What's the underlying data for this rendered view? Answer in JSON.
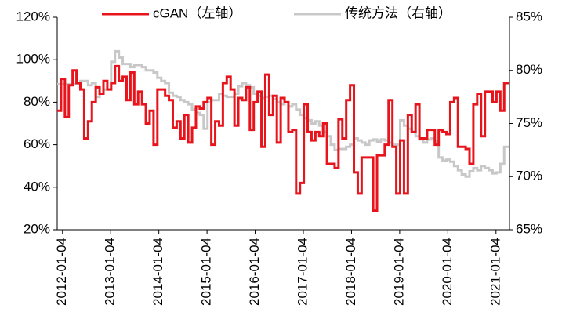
{
  "chart_data": {
    "type": "line",
    "step": true,
    "x": [
      2011.9,
      2011.98,
      2012.06,
      2012.14,
      2012.22,
      2012.3,
      2012.38,
      2012.46,
      2012.54,
      2012.62,
      2012.7,
      2012.78,
      2012.86,
      2012.94,
      2013.02,
      2013.1,
      2013.18,
      2013.26,
      2013.34,
      2013.42,
      2013.5,
      2013.58,
      2013.66,
      2013.74,
      2013.82,
      2013.9,
      2013.98,
      2014.06,
      2014.14,
      2014.22,
      2014.3,
      2014.38,
      2014.46,
      2014.54,
      2014.62,
      2014.7,
      2014.78,
      2014.86,
      2014.94,
      2015.02,
      2015.1,
      2015.18,
      2015.26,
      2015.34,
      2015.42,
      2015.5,
      2015.58,
      2015.66,
      2015.74,
      2015.82,
      2015.9,
      2015.98,
      2016.06,
      2016.14,
      2016.22,
      2016.3,
      2016.38,
      2016.46,
      2016.54,
      2016.62,
      2016.7,
      2016.78,
      2016.86,
      2016.94,
      2017.02,
      2017.1,
      2017.18,
      2017.26,
      2017.34,
      2017.42,
      2017.5,
      2017.58,
      2017.66,
      2017.74,
      2017.82,
      2017.9,
      2017.98,
      2018.06,
      2018.14,
      2018.22,
      2018.3,
      2018.38,
      2018.46,
      2018.54,
      2018.62,
      2018.7,
      2018.78,
      2018.86,
      2018.94,
      2019.02,
      2019.1,
      2019.18,
      2019.26,
      2019.34,
      2019.42,
      2019.5,
      2019.58,
      2019.66,
      2019.74,
      2019.82,
      2019.9,
      2019.98,
      2020.06,
      2020.14,
      2020.22,
      2020.3,
      2020.38,
      2020.46,
      2020.54,
      2020.62,
      2020.7,
      2020.78,
      2020.86,
      2020.94,
      2021.02,
      2021.1,
      2021.18
    ],
    "series": [
      {
        "name": "cGAN（左轴）",
        "color": "#e8141b",
        "values": [
          76,
          91,
          73,
          88,
          95,
          89,
          86,
          63,
          71,
          80,
          87,
          84,
          90,
          86,
          89,
          97,
          90,
          92,
          81,
          94,
          79,
          85,
          79,
          70,
          76,
          60,
          86,
          86,
          83,
          81,
          68,
          71,
          63,
          74,
          61,
          68,
          78,
          77,
          80,
          82,
          60,
          71,
          69,
          89,
          92,
          86,
          69,
          82,
          81,
          87,
          67,
          80,
          85,
          59,
          93,
          74,
          83,
          61,
          82,
          80,
          66,
          67,
          37,
          42,
          79,
          66,
          62,
          66,
          64,
          70,
          51,
          51,
          49,
          72,
          63,
          81,
          88,
          47,
          37,
          54,
          54,
          54,
          29,
          55,
          55,
          60,
          81,
          59,
          37,
          62,
          37,
          74,
          66,
          79,
          63,
          63,
          67,
          67,
          60,
          67,
          66,
          65,
          80,
          82,
          59,
          59,
          58,
          51,
          79,
          84,
          64,
          85,
          85,
          80,
          85,
          76,
          89
        ]
      },
      {
        "name": "传统方法（右轴）",
        "color": "#c8c8c8",
        "axis": "y2",
        "values": [
          78.7,
          78.7,
          78.7,
          78.7,
          78.7,
          78.7,
          79,
          79,
          78.6,
          78.8,
          77.5,
          77.8,
          78.2,
          78.2,
          80.8,
          81.8,
          81.2,
          80.6,
          80.6,
          80.3,
          80.5,
          80.5,
          80.3,
          80,
          80,
          79.8,
          79.3,
          79,
          78.8,
          77.9,
          77.6,
          77.5,
          77.2,
          77,
          76.8,
          76.3,
          76,
          75.8,
          74.5,
          77,
          77.2,
          77.2,
          77.8,
          77.6,
          77.5,
          77.5,
          77.8,
          78.5,
          78.8,
          78.6,
          78.4,
          77.8,
          77.6,
          77.4,
          77.5,
          77.6,
          77.3,
          77,
          76.8,
          77,
          76.6,
          76.8,
          76.3,
          75.8,
          75.5,
          75.3,
          75,
          75.2,
          74.8,
          74.2,
          73.8,
          73,
          72.5,
          72.6,
          72.6,
          72.8,
          73,
          73.6,
          73.4,
          73.2,
          73,
          73.4,
          73.5,
          73.3,
          73.5,
          73.4,
          73.2,
          73,
          73,
          75.3,
          74.8,
          74.5,
          74.2,
          73.8,
          73.5,
          73.2,
          73.5,
          73.6,
          73.3,
          71.8,
          71.5,
          71.6,
          71.4,
          71,
          70.6,
          70.2,
          70,
          70.5,
          70.8,
          70.6,
          71,
          70.8,
          70.6,
          70.3,
          70.4,
          71.2,
          72.8
        ]
      }
    ],
    "xlim": [
      2011.9,
      2021.29
    ],
    "xticks": [
      {
        "value": 2012.01,
        "label": "2012-01-04"
      },
      {
        "value": 2013.01,
        "label": "2013-01-04"
      },
      {
        "value": 2014.01,
        "label": "2014-01-04"
      },
      {
        "value": 2015.01,
        "label": "2015-01-04"
      },
      {
        "value": 2016.01,
        "label": "2016-01-04"
      },
      {
        "value": 2017.01,
        "label": "2017-01-04"
      },
      {
        "value": 2018.01,
        "label": "2018-01-04"
      },
      {
        "value": 2019.01,
        "label": "2019-01-04"
      },
      {
        "value": 2020.01,
        "label": "2020-01-04"
      },
      {
        "value": 2021.01,
        "label": "2021-01-04"
      }
    ],
    "ylim": [
      20,
      120
    ],
    "yticks": [
      {
        "value": 20,
        "label": "20%"
      },
      {
        "value": 40,
        "label": "40%"
      },
      {
        "value": 60,
        "label": "60%"
      },
      {
        "value": 80,
        "label": "80%"
      },
      {
        "value": 100,
        "label": "100%"
      },
      {
        "value": 120,
        "label": "120%"
      }
    ],
    "y2lim": [
      65,
      85
    ],
    "y2ticks": [
      {
        "value": 65,
        "label": "65%"
      },
      {
        "value": 70,
        "label": "70%"
      },
      {
        "value": 75,
        "label": "75%"
      },
      {
        "value": 80,
        "label": "80%"
      },
      {
        "value": 85,
        "label": "85%"
      }
    ],
    "legend": "top",
    "grid": false
  }
}
